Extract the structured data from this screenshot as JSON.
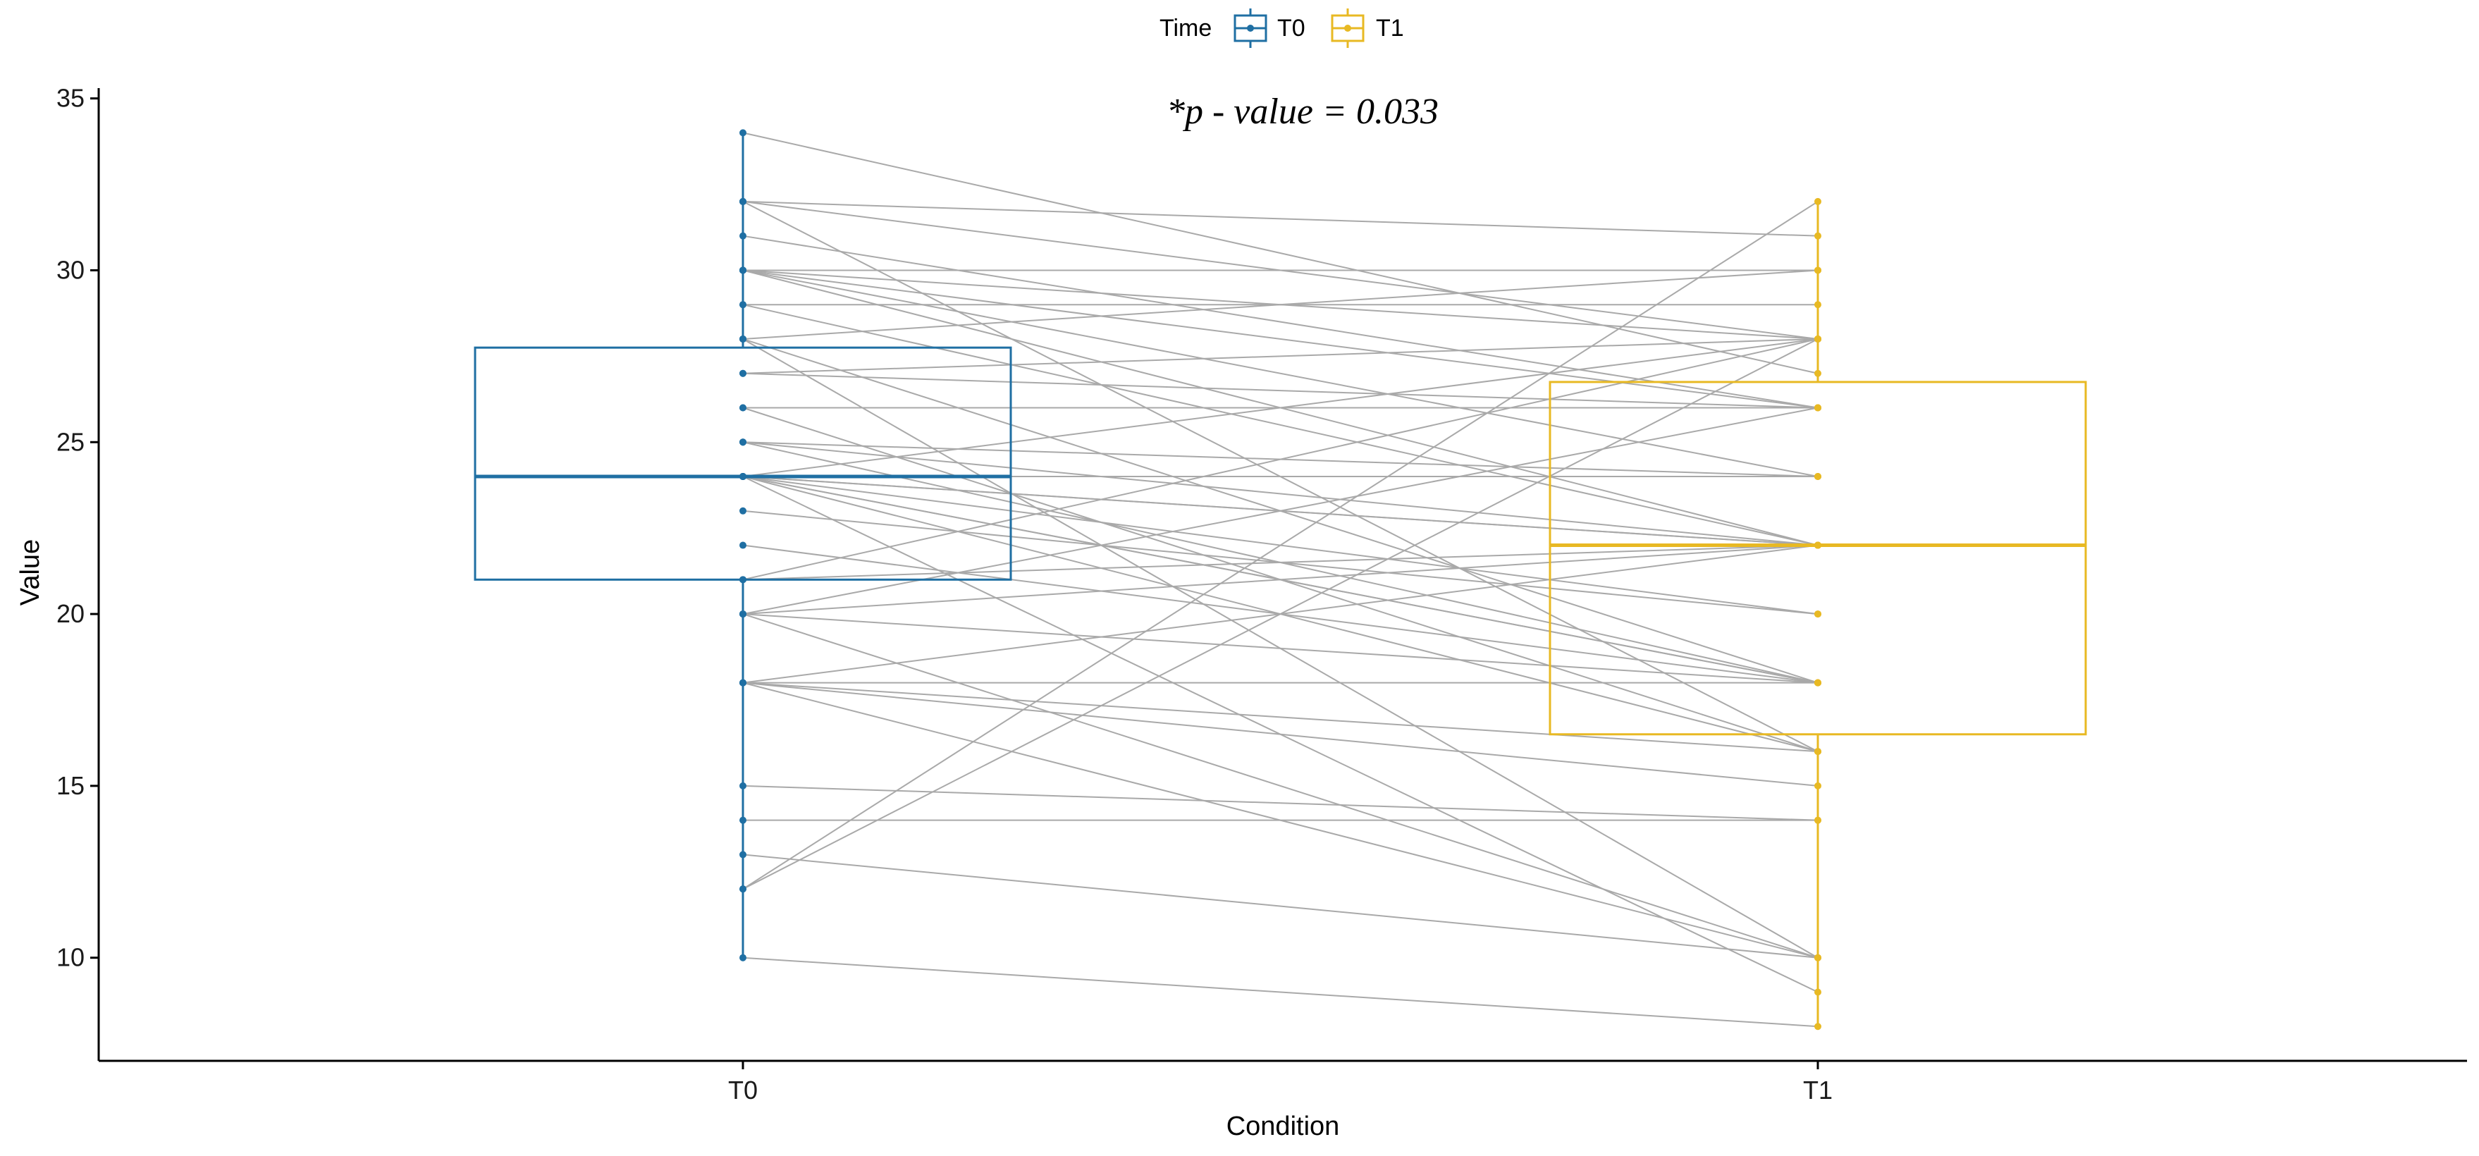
{
  "chart_data": {
    "type": "box",
    "title": "",
    "annotation": "*p - value = 0.033",
    "xlabel": "Condition",
    "ylabel": "Value",
    "categories": [
      "T0",
      "T1"
    ],
    "ylim": [
      7,
      35.3
    ],
    "yticks": [
      10,
      15,
      20,
      25,
      30,
      35
    ],
    "legend": {
      "title": "Time",
      "position": "top",
      "entries": [
        "T0",
        "T1"
      ]
    },
    "colors": {
      "T0": "#1f6fa3",
      "T1": "#e8b923",
      "pair_line": "#a9a9a9",
      "axis": "#000000"
    },
    "boxes": [
      {
        "name": "T0",
        "q1": 21,
        "median": 24,
        "q3": 27.75,
        "whisker_low": 10,
        "whisker_high": 34
      },
      {
        "name": "T1",
        "q1": 16.5,
        "median": 22,
        "q3": 26.75,
        "whisker_low": 8,
        "whisker_high": 32
      }
    ],
    "pairs": [
      [
        34,
        27
      ],
      [
        32,
        31
      ],
      [
        32,
        28
      ],
      [
        32,
        16
      ],
      [
        31,
        26
      ],
      [
        30,
        30
      ],
      [
        30,
        28
      ],
      [
        30,
        26
      ],
      [
        30,
        24
      ],
      [
        30,
        22
      ],
      [
        29,
        29
      ],
      [
        29,
        22
      ],
      [
        28,
        30
      ],
      [
        28,
        18
      ],
      [
        28,
        10
      ],
      [
        27,
        26
      ],
      [
        27,
        28
      ],
      [
        26,
        26
      ],
      [
        26,
        16
      ],
      [
        25,
        24
      ],
      [
        25,
        22
      ],
      [
        25,
        18
      ],
      [
        24,
        28
      ],
      [
        24,
        24
      ],
      [
        24,
        22
      ],
      [
        24,
        22
      ],
      [
        24,
        20
      ],
      [
        24,
        18
      ],
      [
        24,
        18
      ],
      [
        24,
        16
      ],
      [
        23,
        20
      ],
      [
        22,
        18
      ],
      [
        21,
        28
      ],
      [
        21,
        22
      ],
      [
        20,
        26
      ],
      [
        20,
        18
      ],
      [
        20,
        10
      ],
      [
        18,
        22
      ],
      [
        18,
        16
      ],
      [
        18,
        15
      ],
      [
        18,
        10
      ],
      [
        15,
        14
      ],
      [
        14,
        14
      ],
      [
        13,
        10
      ],
      [
        12,
        28
      ],
      [
        12,
        32
      ],
      [
        10,
        8
      ],
      [
        24,
        9
      ],
      [
        20,
        22
      ],
      [
        18,
        18
      ]
    ]
  }
}
